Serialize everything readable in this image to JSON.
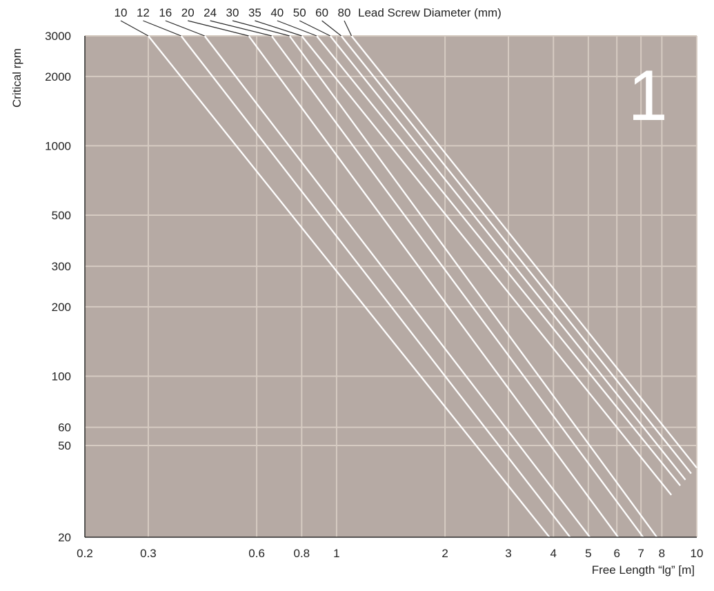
{
  "chart_data": {
    "type": "line",
    "x_scale": "log",
    "y_scale": "log",
    "xlim": [
      0.2,
      10
    ],
    "ylim": [
      20,
      3000
    ],
    "grid": true,
    "xlabel": "Free Length “lg” [m]",
    "ylabel": "Critical rpm",
    "legend_title": "Lead Screw Diameter (mm)",
    "legend_placement": "top",
    "panel_number": "1",
    "x_ticks": [
      {
        "value": 0.2,
        "label": "0.2"
      },
      {
        "value": 0.3,
        "label": "0.3"
      },
      {
        "value": 0.6,
        "label": "0.6"
      },
      {
        "value": 0.8,
        "label": "0.8"
      },
      {
        "value": 1,
        "label": "1"
      },
      {
        "value": 2,
        "label": "2"
      },
      {
        "value": 3,
        "label": "3"
      },
      {
        "value": 4,
        "label": "4"
      },
      {
        "value": 5,
        "label": "5"
      },
      {
        "value": 6,
        "label": "6"
      },
      {
        "value": 7,
        "label": "7"
      },
      {
        "value": 8,
        "label": "8"
      },
      {
        "value": 10,
        "label": "10"
      }
    ],
    "y_ticks": [
      {
        "value": 20,
        "label": "20"
      },
      {
        "value": 50,
        "label": "50"
      },
      {
        "value": 60,
        "label": "60"
      },
      {
        "value": 100,
        "label": "100"
      },
      {
        "value": 200,
        "label": "200"
      },
      {
        "value": 300,
        "label": "300"
      },
      {
        "value": 500,
        "label": "500"
      },
      {
        "value": 1000,
        "label": "1000"
      },
      {
        "value": 2000,
        "label": "2000"
      },
      {
        "value": 3000,
        "label": "3000"
      }
    ],
    "series": [
      {
        "name": "10",
        "points": [
          [
            0.3,
            3000
          ],
          [
            3.9,
            20
          ]
        ]
      },
      {
        "name": "12",
        "points": [
          [
            0.37,
            3000
          ],
          [
            4.45,
            20
          ]
        ]
      },
      {
        "name": "16",
        "points": [
          [
            0.43,
            3000
          ],
          [
            5.05,
            20
          ]
        ]
      },
      {
        "name": "20",
        "points": [
          [
            0.57,
            3000
          ],
          [
            6.05,
            20
          ]
        ]
      },
      {
        "name": "24",
        "points": [
          [
            0.66,
            3000
          ],
          [
            7.1,
            20
          ]
        ]
      },
      {
        "name": "30",
        "points": [
          [
            0.74,
            3000
          ],
          [
            7.75,
            20
          ]
        ]
      },
      {
        "name": "35",
        "points": [
          [
            0.8,
            3000
          ],
          [
            8.5,
            30.5
          ]
        ]
      },
      {
        "name": "40",
        "points": [
          [
            0.88,
            3000
          ],
          [
            9.0,
            33.5
          ]
        ]
      },
      {
        "name": "50",
        "points": [
          [
            0.96,
            3000
          ],
          [
            9.3,
            35.5
          ]
        ]
      },
      {
        "name": "60",
        "points": [
          [
            1.03,
            3000
          ],
          [
            9.65,
            37.8
          ]
        ]
      },
      {
        "name": "80",
        "points": [
          [
            1.1,
            3000
          ],
          [
            10,
            40
          ]
        ]
      }
    ],
    "colors": {
      "plot_background": "#b6aaa4",
      "grid": "#d6cbc2",
      "series": "#ffffff",
      "frame": "#2a2a2a",
      "leader": "#2a2a2a"
    }
  }
}
